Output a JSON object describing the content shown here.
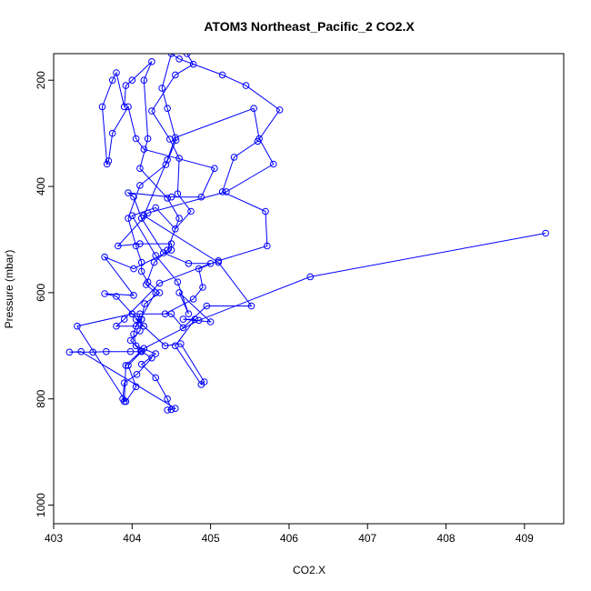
{
  "chart_data": {
    "type": "line",
    "title": "ATOM3 Northeast_Pacific_2 CO2.X",
    "xlabel": "CO2.X",
    "ylabel": "Pressure (mbar)",
    "xlim": [
      403,
      409.5
    ],
    "ylim": [
      1035,
      150
    ],
    "y_reversed": true,
    "x_ticks": [
      403,
      404,
      405,
      406,
      407,
      408,
      409
    ],
    "y_ticks": [
      200,
      400,
      600,
      800,
      1000
    ],
    "grid": false,
    "legend": "none",
    "series": [
      {
        "line_color": "#0000ff",
        "marker": "open-circle",
        "points": [
          [
            409.27,
            488
          ],
          [
            406.27,
            570
          ],
          [
            404.85,
            652
          ],
          [
            404.15,
            705
          ],
          [
            403.92,
            737
          ],
          [
            403.9,
            805
          ],
          [
            403.88,
            800
          ],
          [
            403.9,
            770
          ],
          [
            404.06,
            754
          ],
          [
            404.25,
            723
          ],
          [
            404.11,
            710
          ],
          [
            403.98,
            690
          ],
          [
            404.1,
            672
          ],
          [
            404.12,
            650
          ],
          [
            404.16,
            621
          ],
          [
            404.35,
            600
          ],
          [
            404.2,
            580
          ],
          [
            404.12,
            560
          ],
          [
            404.12,
            543
          ],
          [
            404.05,
            512
          ],
          [
            403.95,
            460
          ],
          [
            404.1,
            398
          ],
          [
            404.43,
            359
          ],
          [
            404.56,
            313
          ],
          [
            404.45,
            253
          ],
          [
            404.38,
            215
          ],
          [
            404.5,
            150
          ],
          [
            404.6,
            160
          ],
          [
            405.15,
            190
          ],
          [
            405.45,
            210
          ],
          [
            405.88,
            256
          ],
          [
            405.6,
            315
          ],
          [
            405.3,
            345
          ],
          [
            405.15,
            410
          ],
          [
            405.7,
            447
          ],
          [
            405.72,
            512
          ],
          [
            405.1,
            540
          ],
          [
            404.85,
            555
          ],
          [
            404.9,
            590
          ],
          [
            404.78,
            612
          ],
          [
            404.42,
            640
          ],
          [
            404.1,
            640
          ],
          [
            404.02,
            678
          ],
          [
            404.05,
            700
          ],
          [
            404.3,
            715
          ],
          [
            404.12,
            735
          ],
          [
            404.3,
            760
          ],
          [
            404.45,
            800
          ],
          [
            404.5,
            820
          ],
          [
            404.45,
            821
          ],
          [
            404.55,
            818
          ],
          [
            403.35,
            711
          ],
          [
            403.2,
            712
          ],
          [
            403.5,
            712
          ],
          [
            403.67,
            711
          ],
          [
            403.98,
            711
          ],
          [
            404.12,
            711
          ],
          [
            403.95,
            737
          ],
          [
            404.05,
            777
          ],
          [
            403.92,
            805
          ],
          [
            403.3,
            663
          ],
          [
            404.0,
            640
          ],
          [
            404.5,
            640
          ],
          [
            404.65,
            666
          ],
          [
            404.95,
            625
          ],
          [
            405.52,
            625
          ],
          [
            405.1,
            543
          ],
          [
            404.15,
            455
          ],
          [
            404.45,
            350
          ],
          [
            404.55,
            308
          ],
          [
            405.55,
            253
          ],
          [
            405.62,
            310
          ],
          [
            405.8,
            358
          ],
          [
            405.2,
            410
          ],
          [
            404.2,
            450
          ],
          [
            403.82,
            512
          ],
          [
            404.1,
            508
          ],
          [
            404.5,
            508
          ],
          [
            404.5,
            520
          ],
          [
            404.02,
            555
          ],
          [
            403.65,
            533
          ],
          [
            404.02,
            605
          ],
          [
            403.65,
            602
          ],
          [
            403.8,
            607
          ],
          [
            404.0,
            640
          ],
          [
            404.15,
            663
          ],
          [
            403.8,
            663
          ],
          [
            403.9,
            650
          ],
          [
            404.35,
            582
          ],
          [
            405.0,
            545
          ],
          [
            404.72,
            545
          ],
          [
            404.4,
            525
          ],
          [
            404.12,
            460
          ],
          [
            404.02,
            420
          ],
          [
            403.95,
            412
          ],
          [
            404.5,
            420
          ],
          [
            404.88,
            420
          ],
          [
            405.05,
            366
          ],
          [
            404.15,
            330
          ],
          [
            404.05,
            310
          ],
          [
            403.95,
            250
          ],
          [
            403.75,
            300
          ],
          [
            403.7,
            352
          ],
          [
            403.68,
            358
          ],
          [
            403.62,
            250
          ],
          [
            403.75,
            200
          ],
          [
            403.8,
            186
          ],
          [
            403.9,
            250
          ],
          [
            403.92,
            210
          ],
          [
            404.0,
            200
          ],
          [
            404.25,
            165
          ],
          [
            404.15,
            200
          ],
          [
            404.2,
            310
          ],
          [
            404.1,
            366
          ],
          [
            404.45,
            422
          ],
          [
            404.6,
            460
          ],
          [
            404.45,
            520
          ],
          [
            404.28,
            543
          ],
          [
            404.18,
            585
          ],
          [
            404.3,
            600
          ],
          [
            404.05,
            663
          ],
          [
            404.12,
            650
          ],
          [
            404.05,
            650
          ],
          [
            404.42,
            700
          ],
          [
            404.62,
            696
          ],
          [
            404.92,
            768
          ],
          [
            404.88,
            773
          ],
          [
            404.55,
            700
          ],
          [
            404.8,
            650
          ],
          [
            404.65,
            650
          ],
          [
            405.0,
            655
          ],
          [
            404.6,
            600
          ],
          [
            404.72,
            640
          ],
          [
            404.58,
            580
          ],
          [
            404.3,
            530
          ],
          [
            404.0,
            455
          ],
          [
            404.3,
            440
          ],
          [
            404.55,
            480
          ],
          [
            404.75,
            447
          ],
          [
            404.58,
            414
          ],
          [
            404.6,
            347
          ],
          [
            404.48,
            311
          ],
          [
            404.25,
            258
          ],
          [
            404.55,
            190
          ],
          [
            404.78,
            170
          ],
          [
            404.7,
            150
          ]
        ]
      }
    ]
  }
}
